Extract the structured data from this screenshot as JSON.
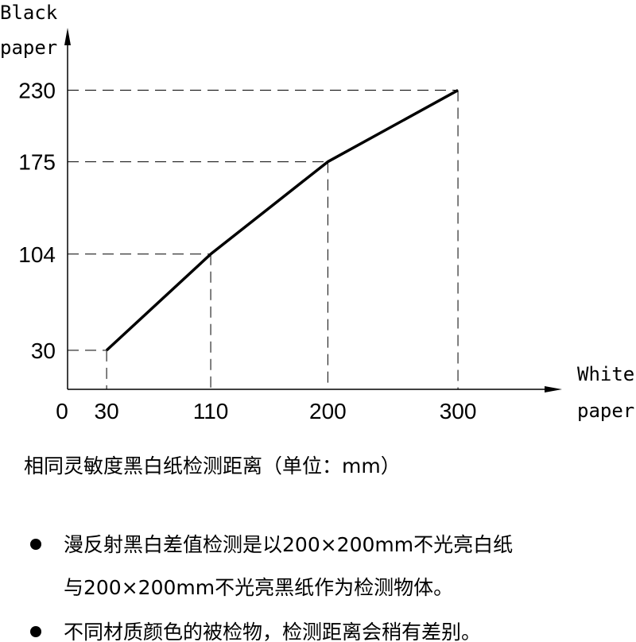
{
  "chart_data": {
    "type": "line",
    "y_label": [
      "Black",
      "paper"
    ],
    "x_label": [
      "White",
      "paper"
    ],
    "x": [
      30,
      110,
      200,
      300
    ],
    "series": [
      {
        "name": "Black paper",
        "color": "#000000",
        "values": [
          30,
          104,
          175,
          230
        ]
      }
    ],
    "xlim": [
      0,
      380
    ],
    "ylim": [
      0,
      278
    ],
    "xticks": [
      0,
      30,
      110,
      200,
      300
    ],
    "yticks": [
      30,
      104,
      175,
      230
    ],
    "guides": true
  },
  "caption": "相同灵敏度黑白纸检测距离（单位：mm）",
  "notes": [
    "漫反射黑白差值检测是以200×200mm不光亮白纸",
    "与200×200mm不光亮黑纸作为检测物体。",
    "不同材质颜色的被检物，检测距离会稍有差别。"
  ]
}
